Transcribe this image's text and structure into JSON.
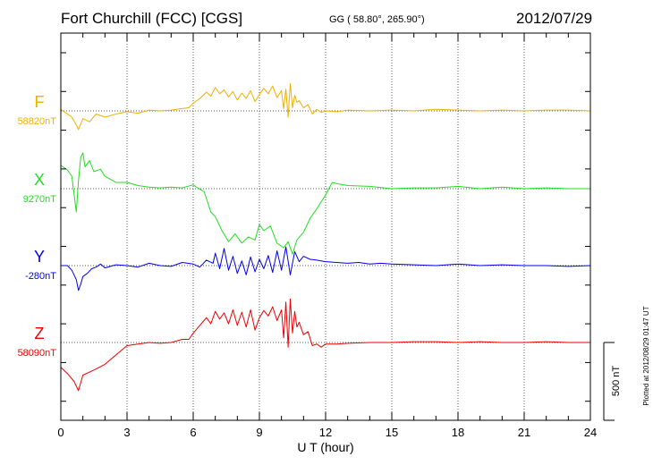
{
  "header": {
    "station": "Fort Churchill (FCC)  [CGS]",
    "coords": "GG ( 58.80°, 265.90°)",
    "date": "2012/07/29"
  },
  "footer": {
    "plotted": "Plotted at 2012/08/29 01:47 UT"
  },
  "chart_data": {
    "type": "line",
    "title": "Fort Churchill (FCC)  [CGS]",
    "xlabel": "U T (hour)",
    "xlim": [
      0,
      24
    ],
    "xticks": [
      0,
      3,
      6,
      9,
      12,
      15,
      18,
      21,
      24
    ],
    "scale_bar": "500 nT",
    "grid": true,
    "colors": {
      "F": "#f0b000",
      "X": "#22dd22",
      "Y": "#0000ee",
      "Z": "#ee0000"
    },
    "series": [
      {
        "name": "F",
        "baseline": "58820nT",
        "color": "#f0b000",
        "x": [
          0,
          0.5,
          0.7,
          0.8,
          1,
          1.3,
          1.6,
          2,
          2.5,
          3,
          3.5,
          4,
          4.5,
          5,
          5.5,
          5.8,
          6,
          6.3,
          6.6,
          6.8,
          7,
          7.2,
          7.4,
          7.6,
          7.8,
          8,
          8.2,
          8.4,
          8.6,
          8.8,
          9,
          9.2,
          9.4,
          9.6,
          9.8,
          10,
          10.1,
          10.2,
          10.3,
          10.4,
          10.5,
          10.6,
          10.7,
          10.8,
          11,
          11.2,
          11.4,
          11.6,
          11.8,
          12,
          12.5,
          13,
          14,
          15,
          16,
          17,
          18,
          19,
          20,
          21,
          22,
          23,
          24
        ],
        "values": [
          10,
          -40,
          -90,
          -120,
          -50,
          -70,
          -20,
          -40,
          -20,
          -5,
          -15,
          5,
          0,
          5,
          15,
          20,
          50,
          80,
          120,
          95,
          150,
          110,
          135,
          90,
          125,
          70,
          115,
          80,
          130,
          60,
          105,
          145,
          110,
          160,
          85,
          130,
          15,
          140,
          -40,
          175,
          20,
          100,
          55,
          65,
          20,
          40,
          -20,
          10,
          -10,
          0,
          -5,
          5,
          0,
          5,
          0,
          10,
          5,
          0,
          5,
          0,
          5,
          5,
          0
        ]
      },
      {
        "name": "X",
        "baseline": "9270nT",
        "color": "#22dd22",
        "x": [
          0,
          0.3,
          0.5,
          0.7,
          0.8,
          0.9,
          1,
          1.1,
          1.3,
          1.5,
          1.8,
          2,
          2.5,
          3,
          3.5,
          4,
          4.5,
          5,
          5.5,
          6,
          6.2,
          6.5,
          6.8,
          7,
          7.3,
          7.6,
          7.9,
          8.2,
          8.5,
          8.8,
          9,
          9.2,
          9.5,
          9.8,
          10.1,
          10.3,
          10.5,
          10.7,
          11,
          11.3,
          11.6,
          12,
          12.3,
          12.6,
          13,
          14,
          15,
          16,
          17,
          18,
          19,
          20,
          21,
          22,
          23,
          24
        ],
        "values": [
          150,
          120,
          80,
          -150,
          50,
          200,
          230,
          140,
          180,
          110,
          125,
          80,
          40,
          40,
          20,
          10,
          5,
          10,
          5,
          25,
          5,
          -20,
          -150,
          -180,
          -270,
          -340,
          -290,
          -350,
          -310,
          -330,
          -230,
          -270,
          -240,
          -350,
          -380,
          -340,
          -420,
          -330,
          -280,
          -190,
          -130,
          -40,
          40,
          30,
          20,
          15,
          0,
          5,
          5,
          15,
          0,
          10,
          0,
          5,
          0,
          0
        ]
      },
      {
        "name": "Y",
        "baseline": "-280nT",
        "color": "#0000ee",
        "x": [
          0,
          0.3,
          0.5,
          0.7,
          0.8,
          0.9,
          1,
          1.2,
          1.4,
          1.6,
          1.8,
          2,
          2.5,
          3,
          3.5,
          4,
          4.5,
          5,
          5.5,
          6,
          6.3,
          6.6,
          6.9,
          7,
          7.2,
          7.4,
          7.6,
          7.8,
          8,
          8.2,
          8.4,
          8.6,
          8.8,
          9,
          9.2,
          9.4,
          9.6,
          9.8,
          10,
          10.2,
          10.4,
          10.6,
          10.8,
          11,
          11.3,
          11.6,
          12,
          12.5,
          13,
          13.5,
          14,
          14.5,
          15,
          16,
          17,
          18,
          19,
          20,
          21,
          22,
          23,
          24
        ],
        "values": [
          0,
          0,
          -30,
          -90,
          -160,
          -120,
          -70,
          -50,
          -20,
          -10,
          10,
          -15,
          5,
          0,
          -10,
          15,
          0,
          -5,
          20,
          10,
          -10,
          35,
          15,
          80,
          -20,
          110,
          -30,
          60,
          -50,
          30,
          -60,
          55,
          -40,
          40,
          -20,
          65,
          -45,
          95,
          -30,
          120,
          -60,
          90,
          25,
          60,
          40,
          35,
          25,
          20,
          15,
          20,
          10,
          15,
          10,
          5,
          0,
          10,
          0,
          5,
          0,
          0,
          -5,
          0
        ]
      },
      {
        "name": "Z",
        "baseline": "58090nT",
        "color": "#ee0000",
        "x": [
          0,
          0.3,
          0.6,
          0.8,
          1,
          1.3,
          1.6,
          2,
          2.5,
          3,
          3.5,
          4,
          4.5,
          5,
          5.5,
          5.8,
          6,
          6.3,
          6.6,
          6.8,
          7,
          7.2,
          7.4,
          7.6,
          7.8,
          8,
          8.2,
          8.4,
          8.6,
          8.8,
          9,
          9.2,
          9.4,
          9.6,
          9.8,
          10,
          10.1,
          10.2,
          10.3,
          10.4,
          10.5,
          10.6,
          10.7,
          10.8,
          11,
          11.2,
          11.4,
          11.6,
          11.8,
          12,
          12.5,
          13,
          14,
          15,
          16,
          17,
          18,
          19,
          20,
          21,
          22,
          23,
          24
        ],
        "values": [
          -160,
          -200,
          -250,
          -310,
          -210,
          -190,
          -170,
          -140,
          -80,
          -20,
          -10,
          0,
          -5,
          0,
          20,
          20,
          60,
          110,
          160,
          120,
          200,
          150,
          190,
          120,
          210,
          110,
          195,
          100,
          210,
          80,
          160,
          205,
          170,
          230,
          140,
          210,
          30,
          260,
          -30,
          280,
          60,
          200,
          100,
          130,
          50,
          70,
          -20,
          -10,
          -30,
          -10,
          -10,
          -5,
          0,
          0,
          5,
          5,
          0,
          5,
          0,
          0,
          5,
          0,
          0
        ]
      }
    ]
  }
}
